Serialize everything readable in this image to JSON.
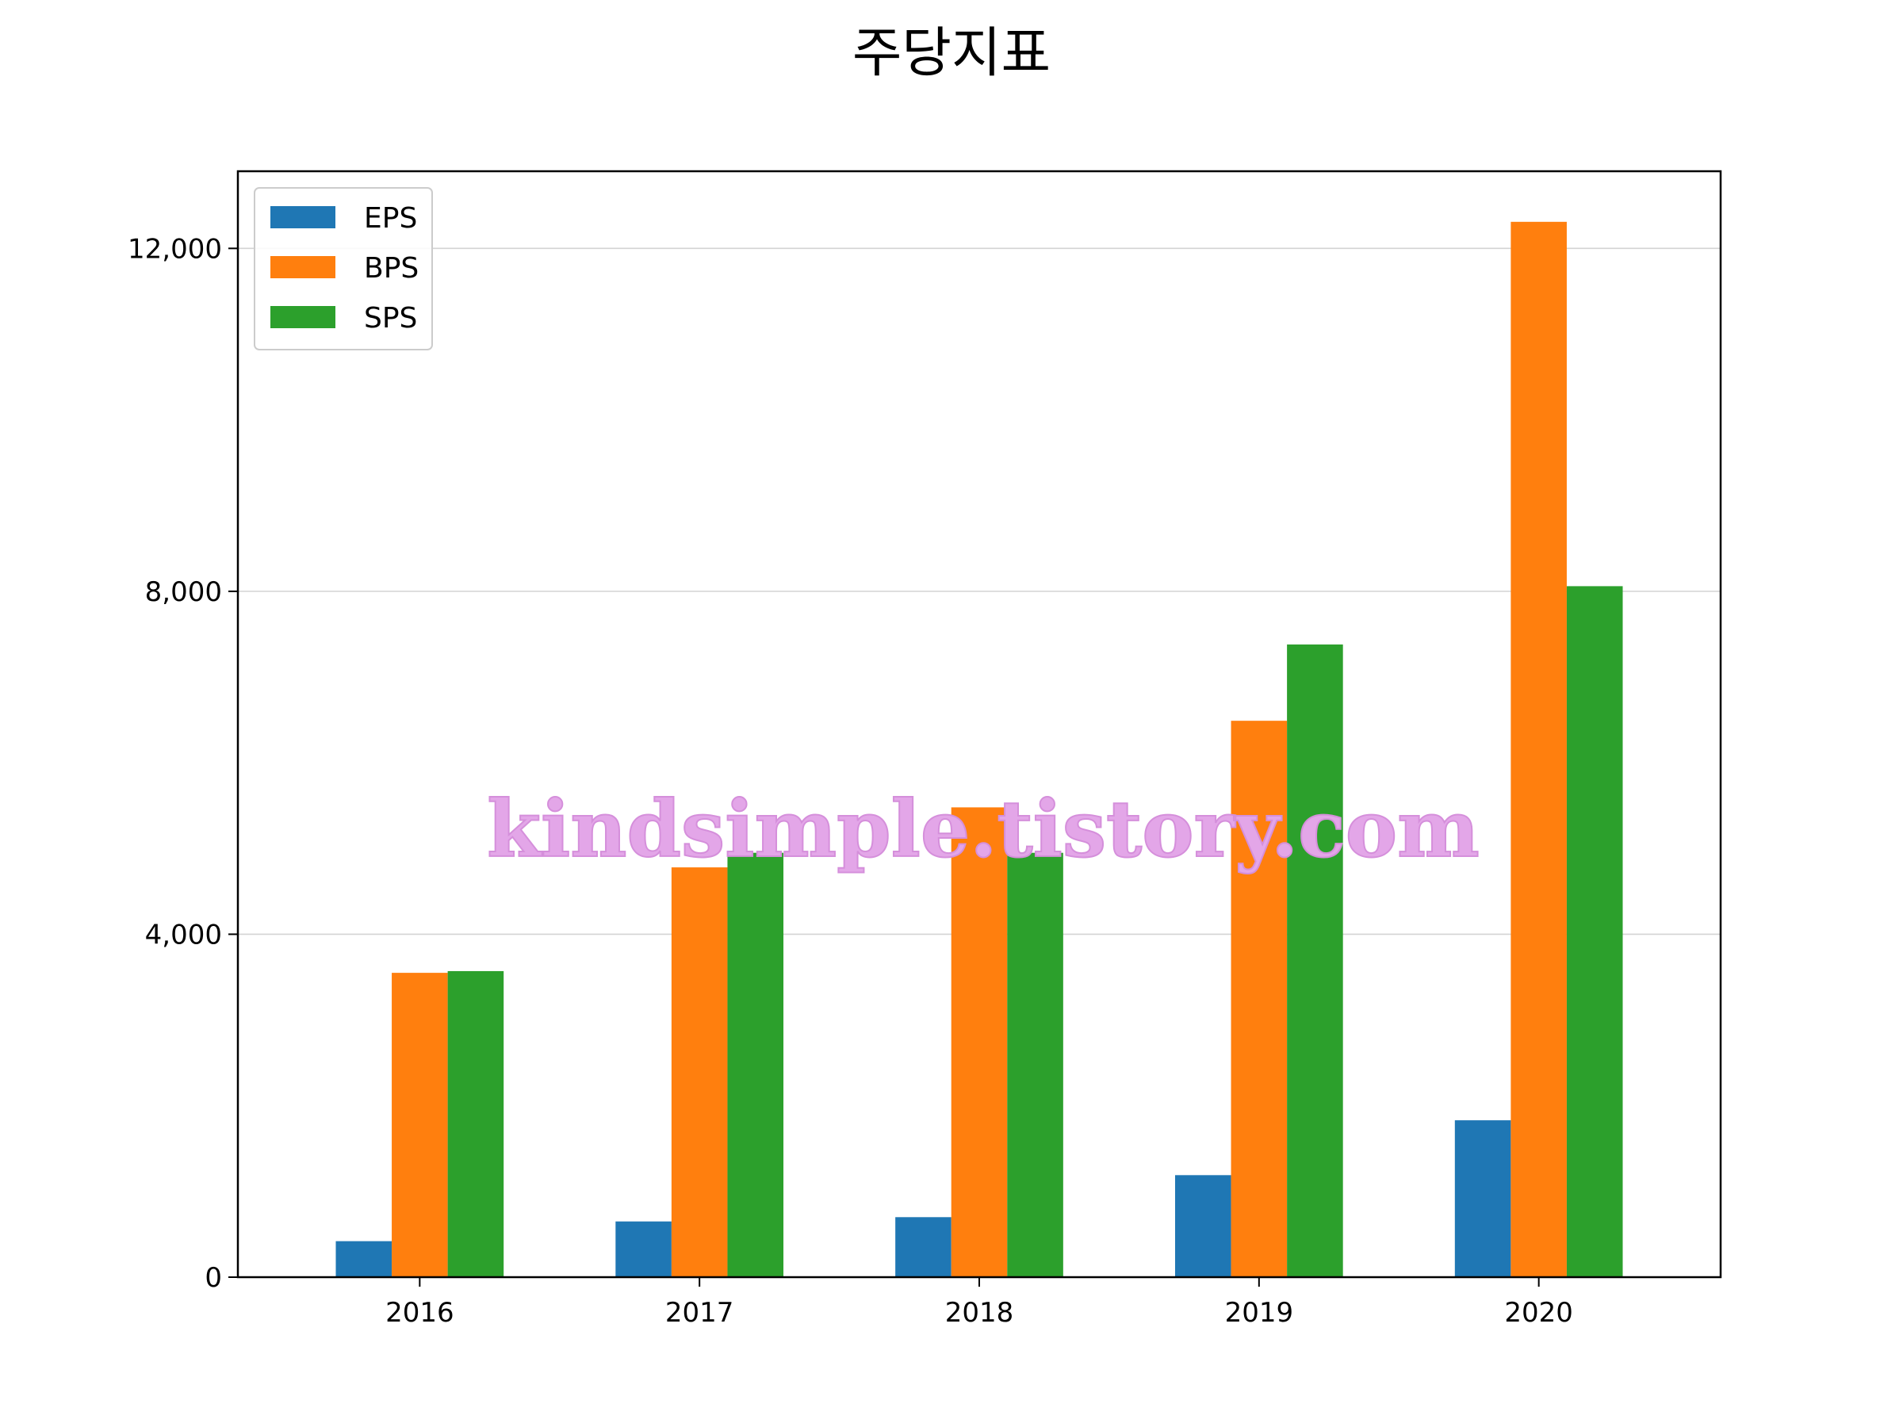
{
  "chart_data": {
    "type": "bar",
    "title": "주당지표",
    "xlabel": "",
    "ylabel": "",
    "categories": [
      "2016",
      "2017",
      "2018",
      "2019",
      "2020"
    ],
    "series": [
      {
        "name": "EPS",
        "color": "#1f77b4",
        "values": [
          420,
          650,
          700,
          1190,
          1830
        ]
      },
      {
        "name": "BPS",
        "color": "#ff7f0e",
        "values": [
          3550,
          4780,
          5480,
          6490,
          12310
        ]
      },
      {
        "name": "SPS",
        "color": "#2ca02c",
        "values": [
          3570,
          4950,
          4950,
          7380,
          8060
        ]
      }
    ],
    "ylim": [
      0,
      12900
    ],
    "yticks": [
      0,
      4000,
      8000,
      12000
    ],
    "ytick_labels": [
      "0",
      "4,000",
      "8,000",
      "12,000"
    ],
    "grid": "horizontal",
    "legend_position": "upper left"
  },
  "watermark": "kindsimple.tistory.com"
}
